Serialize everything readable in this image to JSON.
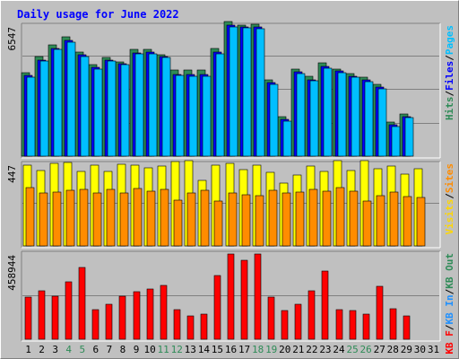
{
  "chart_data": {
    "type": "bar",
    "title": "Daily usage for June 2022",
    "categories": [
      "1",
      "2",
      "3",
      "4",
      "5",
      "6",
      "7",
      "8",
      "9",
      "10",
      "11",
      "12",
      "13",
      "14",
      "15",
      "16",
      "17",
      "18",
      "19",
      "20",
      "21",
      "22",
      "23",
      "24",
      "25",
      "26",
      "27",
      "28",
      "29",
      "30",
      "31"
    ],
    "weekend_days": [
      4,
      5,
      11,
      12,
      18,
      19,
      25,
      26
    ],
    "panels": [
      {
        "id": "hits",
        "ymax_label": "6547",
        "ymax": 6547,
        "series_labels": [
          {
            "text": "Hits",
            "color": "#2e8b57"
          },
          {
            "text": "/",
            "color": "#000000"
          },
          {
            "text": "Files",
            "color": "#0000ff"
          },
          {
            "text": "/",
            "color": "#000000"
          },
          {
            "text": "Pages",
            "color": "#00bfff"
          }
        ],
        "series": [
          {
            "name": "Hits",
            "color": "#2e8b57",
            "values": [
              4070,
              4830,
              5410,
              5820,
              5050,
              4460,
              4800,
              4600,
              5190,
              5190,
              4920,
              4180,
              4190,
              4180,
              5230,
              6550,
              6380,
              6420,
              3720,
              1920,
              4250,
              3900,
              4560,
              4250,
              4030,
              3840,
              3500,
              1670,
              2070,
              null,
              null
            ]
          },
          {
            "name": "Files",
            "color": "#0000ff",
            "values": [
              3930,
              4690,
              5250,
              5620,
              4920,
              4320,
              4680,
              4510,
              5040,
              5050,
              4830,
              3990,
              3960,
              3970,
              5060,
              6360,
              6280,
              6280,
              3580,
              1770,
              4100,
              3730,
              4380,
              4130,
              3900,
              3700,
              3340,
              1530,
              1930,
              null,
              null
            ]
          },
          {
            "name": "Pages",
            "color": "#00bfff",
            "values": [
              3850,
              4620,
              5190,
              5530,
              4830,
              4240,
              4610,
              4460,
              4960,
              4980,
              4780,
              3910,
              3880,
              3890,
              4980,
              6280,
              6220,
              6200,
              3500,
              1700,
              4020,
              3650,
              4290,
              4060,
              3830,
              3620,
              3270,
              1460,
              1860,
              null,
              null
            ]
          }
        ]
      },
      {
        "id": "visits",
        "ymax_label": "447",
        "ymax": 447,
        "series_labels": [
          {
            "text": "Visits",
            "color": "#ffd700"
          },
          {
            "text": "/",
            "color": "#000000"
          },
          {
            "text": "Sites",
            "color": "#ff8c00"
          }
        ],
        "series": [
          {
            "name": "Visits",
            "color": "#ffff00",
            "values": [
              420,
              390,
              428,
              435,
              385,
              420,
              387,
              422,
              421,
              404,
              413,
              440,
              443,
              340,
              419,
              427,
              395,
              421,
              383,
              324,
              370,
              415,
              386,
              442,
              389,
              443,
              400,
              414,
              372,
              400,
              null
            ]
          },
          {
            "name": "Sites",
            "color": "#ff8c00",
            "values": [
              301,
              275,
              279,
              287,
              293,
              274,
              294,
              276,
              300,
              283,
              293,
              237,
              276,
              290,
              233,
              274,
              265,
              261,
              289,
              276,
              279,
              292,
              285,
              301,
              286,
              232,
              263,
              280,
              258,
              251,
              null
            ]
          }
        ]
      },
      {
        "id": "kbytes",
        "ymax_label": "458944",
        "ymax": 458944,
        "series_labels": [
          {
            "text": "KB F",
            "color": "#ff0000"
          },
          {
            "text": "/",
            "color": "#000000"
          },
          {
            "text": "KB In",
            "color": "#1e90ff"
          },
          {
            "text": "/",
            "color": "#000000"
          },
          {
            "text": "KB Out",
            "color": "#2e8b57"
          }
        ],
        "series": [
          {
            "name": "KB F",
            "color": "#ff0000",
            "values": [
              220000,
              254000,
              225000,
              301000,
              375000,
              153000,
              181000,
              225000,
              248000,
              264000,
              282000,
              153000,
              120000,
              129000,
              334000,
              444000,
              412000,
              445000,
              221000,
              150000,
              181000,
              254000,
              358000,
              153000,
              150000,
              130000,
              278000,
              157000,
              123000,
              null,
              null
            ]
          }
        ]
      }
    ]
  }
}
